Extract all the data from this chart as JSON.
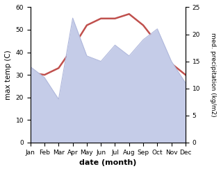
{
  "months": [
    "Jan",
    "Feb",
    "Mar",
    "Apr",
    "May",
    "Jun",
    "Jul",
    "Aug",
    "Sep",
    "Oct",
    "Nov",
    "Dec"
  ],
  "max_temp": [
    31,
    30,
    33,
    42,
    52,
    55,
    55,
    57,
    52,
    44,
    35,
    30
  ],
  "precipitation": [
    14,
    12,
    8,
    23,
    16,
    15,
    18,
    16,
    19,
    21,
    15,
    11
  ],
  "temp_color": "#c0504d",
  "precip_fill_color": "#c5cce8",
  "precip_line_color": "#b0b8dc",
  "left_ylim": [
    0,
    60
  ],
  "right_ylim": [
    0,
    25
  ],
  "left_yticks": [
    0,
    10,
    20,
    30,
    40,
    50,
    60
  ],
  "right_yticks": [
    0,
    5,
    10,
    15,
    20,
    25
  ],
  "xlabel": "date (month)",
  "ylabel_left": "max temp (C)",
  "ylabel_right": "med. precipitation (kg/m2)",
  "figsize": [
    3.18,
    2.47
  ],
  "dpi": 100
}
